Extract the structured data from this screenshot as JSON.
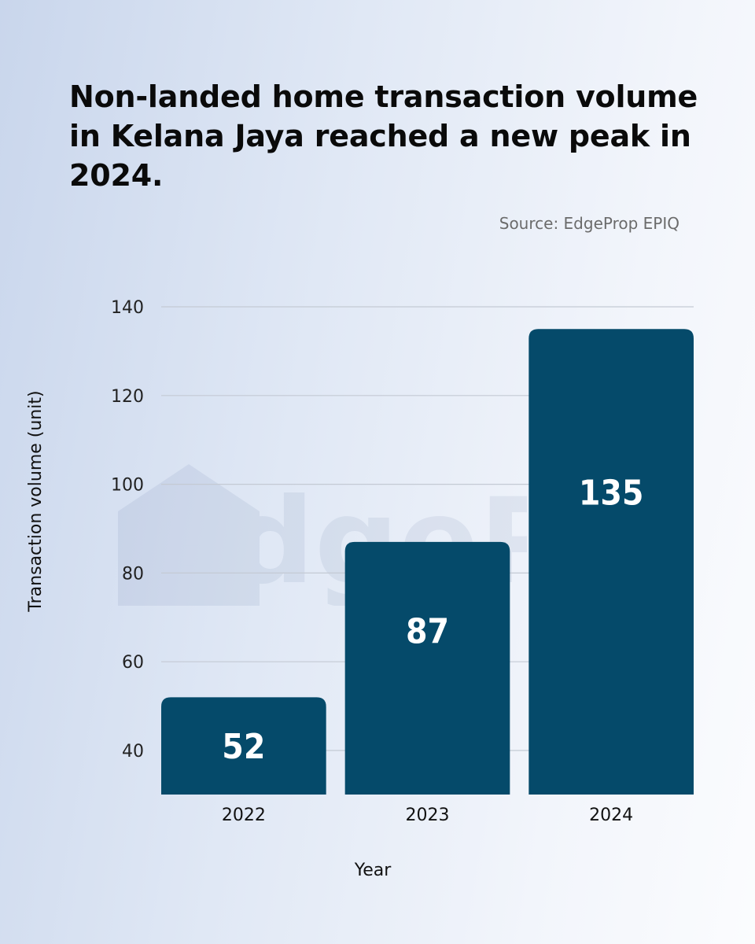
{
  "header": {
    "title": "Non-landed home transaction volume in Kelana Jaya reached a new peak in 2024.",
    "source": "Source: EdgeProp EPIQ"
  },
  "colors": {
    "bar": "#054a6a",
    "grid": "#c4cad4",
    "watermark": "#1f3d7a"
  },
  "watermark": {
    "text": "EdgePr"
  },
  "chart_data": {
    "type": "bar",
    "categories": [
      "2022",
      "2023",
      "2024"
    ],
    "values": [
      52,
      87,
      135
    ],
    "title": "Non-landed home transaction volume in Kelana Jaya reached a new peak in 2024.",
    "xlabel": "Year",
    "ylabel": "Transaction volume (unit)",
    "ylim": [
      30,
      140
    ],
    "yticks": [
      40,
      60,
      80,
      100,
      120,
      140
    ],
    "grid": true,
    "data_labels": true
  }
}
